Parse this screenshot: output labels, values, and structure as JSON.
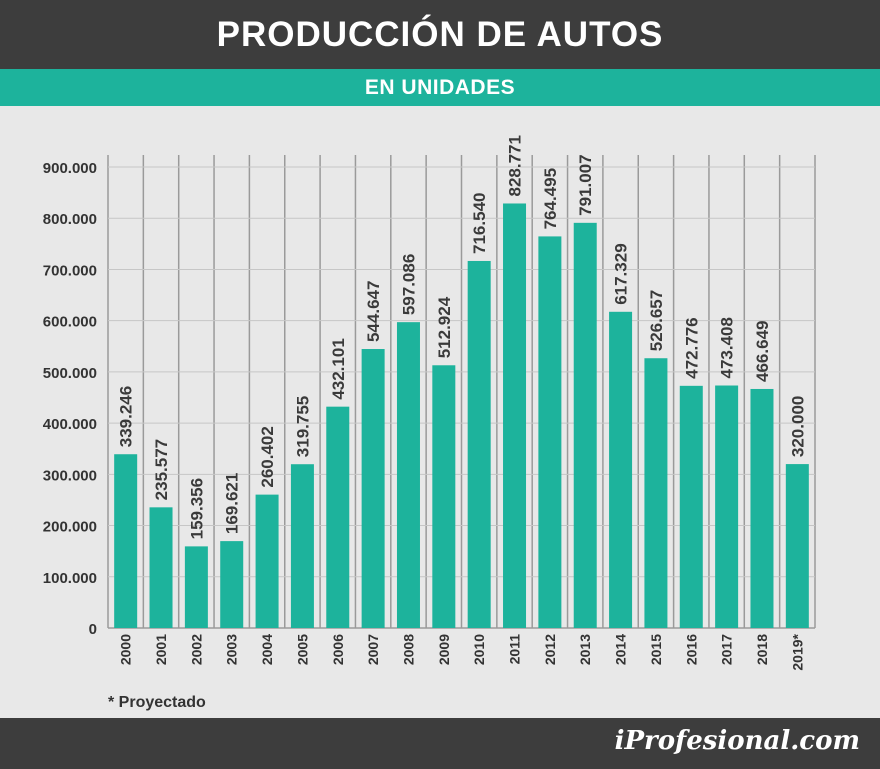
{
  "header": {
    "title": "PRODUCCIÓN DE AUTOS",
    "subtitle": "EN UNIDADES"
  },
  "footnote": "* Proyectado",
  "brand": "iProfesional.com",
  "colors": {
    "bar": "#1db39c",
    "header_bg": "#3d3d3d",
    "accent_bar": "#1db39c",
    "background": "#e8e8e8",
    "label_text": "#333333"
  },
  "chart_data": {
    "type": "bar",
    "title": "PRODUCCIÓN DE AUTOS",
    "subtitle": "EN UNIDADES",
    "xlabel": "",
    "ylabel": "",
    "ylim": [
      0,
      900000
    ],
    "grid": true,
    "categories": [
      "2000",
      "2001",
      "2002",
      "2003",
      "2004",
      "2005",
      "2006",
      "2007",
      "2008",
      "2009",
      "2010",
      "2011",
      "2012",
      "2013",
      "2014",
      "2015",
      "2016",
      "2017",
      "2018",
      "2019*"
    ],
    "values": [
      339246,
      235577,
      159356,
      169621,
      260402,
      319755,
      432101,
      544647,
      597086,
      512924,
      716540,
      828771,
      764495,
      791007,
      617329,
      526657,
      472776,
      473408,
      466649,
      320000
    ],
    "value_labels": [
      "339.246",
      "235.577",
      "159.356",
      "169.621",
      "260.402",
      "319.755",
      "432.101",
      "544.647",
      "597.086",
      "512.924",
      "716.540",
      "828.771",
      "764.495",
      "791.007",
      "617.329",
      "526.657",
      "472.776",
      "473.408",
      "466.649",
      "320.000"
    ],
    "y_ticks": [
      0,
      100000,
      200000,
      300000,
      400000,
      500000,
      600000,
      700000,
      800000,
      900000
    ],
    "y_tick_labels": [
      "0",
      "100.000",
      "200.000",
      "300.000",
      "400.000",
      "500.000",
      "600.000",
      "700.000",
      "800.000",
      "900.000"
    ]
  }
}
